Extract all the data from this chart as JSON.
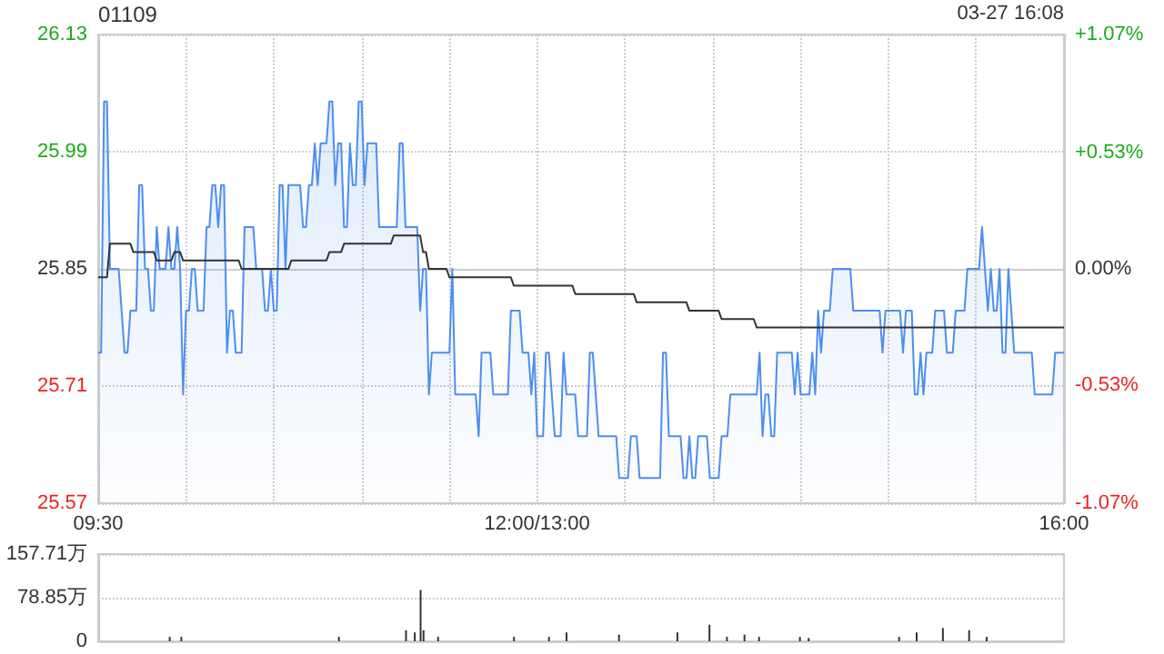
{
  "chart_data": [
    {
      "type": "line",
      "title": "01109",
      "annotations": [
        "03-27 16:08"
      ],
      "categories": [
        "09:30",
        null,
        null,
        null,
        null,
        null,
        null,
        null,
        null,
        null,
        null,
        null,
        null,
        null,
        null,
        null,
        null,
        null,
        null,
        null,
        null,
        null,
        null,
        null,
        null,
        null,
        null,
        null,
        null,
        null,
        null,
        null,
        null,
        null,
        null,
        null,
        null,
        null,
        null,
        null,
        null,
        null,
        null,
        null,
        null,
        null,
        null,
        null,
        null,
        null,
        null,
        null,
        null,
        null,
        null,
        null,
        null,
        null,
        null,
        null,
        null,
        null,
        null,
        null,
        null,
        null,
        null,
        null,
        null,
        null,
        null,
        null,
        null,
        null,
        null,
        null,
        null,
        null,
        null,
        null,
        null,
        null,
        null,
        null,
        null,
        null,
        null,
        null,
        null,
        null,
        null,
        null,
        null,
        null,
        null,
        null,
        null,
        null,
        null,
        null,
        null,
        null,
        null,
        null,
        null,
        null,
        null,
        null,
        null,
        null,
        null,
        null,
        null,
        null,
        null,
        null,
        null,
        null,
        null,
        null,
        null,
        null,
        null,
        null,
        null,
        null,
        null,
        null,
        null,
        null,
        null,
        null,
        null,
        null,
        null,
        null,
        null,
        null,
        null,
        null,
        null,
        null,
        null,
        null,
        null,
        null,
        null,
        null,
        null,
        null,
        "12:00/13:00",
        null,
        null,
        null,
        null,
        null,
        null,
        null,
        null,
        null,
        null,
        null,
        null,
        null,
        null,
        null,
        null,
        null,
        null,
        null,
        null,
        null,
        null,
        null,
        null,
        null,
        null,
        null,
        null,
        null,
        null,
        null,
        null,
        null,
        null,
        null,
        null,
        null,
        null,
        null,
        null,
        null,
        null,
        null,
        null,
        null,
        null,
        null,
        null,
        null,
        null,
        null,
        null,
        null,
        null,
        null,
        null,
        null,
        null,
        null,
        null,
        null,
        null,
        null,
        null,
        null,
        null,
        null,
        null,
        null,
        null,
        null,
        null,
        null,
        null,
        null,
        null,
        null,
        null,
        null,
        null,
        null,
        null,
        null,
        null,
        null,
        null,
        null,
        null,
        null,
        null,
        null,
        null,
        null,
        null,
        null,
        null,
        null,
        null,
        null,
        null,
        null,
        null,
        null,
        null,
        null,
        null,
        null,
        null,
        null,
        null,
        null,
        null,
        null,
        null,
        null,
        null,
        null,
        null,
        null,
        null,
        null,
        null,
        null,
        null,
        null,
        null,
        null,
        null,
        null,
        null,
        null,
        null,
        null,
        null,
        null,
        null,
        null,
        null,
        null,
        null,
        null,
        null,
        null,
        null,
        null,
        null,
        null,
        null,
        null,
        null,
        null,
        null,
        null,
        null,
        null,
        null,
        null,
        null,
        null,
        null,
        null,
        null,
        null,
        null,
        null,
        null,
        null,
        null,
        null,
        null,
        null,
        null,
        null,
        null,
        null,
        null,
        null,
        null,
        null,
        "16:00"
      ],
      "ylim": [
        25.57,
        26.13
      ],
      "yticks": [
        25.57,
        25.71,
        25.85,
        25.99,
        26.13
      ],
      "y2lim": [
        -1.07,
        1.07
      ],
      "y2ticks": [
        {
          "value": -1.07,
          "label": "-1.07%"
        },
        {
          "value": -0.53,
          "label": "-0.53%"
        },
        {
          "value": 0,
          "label": "0.00%"
        },
        {
          "value": 0.53,
          "label": "+0.53%"
        },
        {
          "value": 1.07,
          "label": "+1.07%"
        }
      ],
      "grid": true,
      "marker": "none",
      "line_style": "solid",
      "series": [
        {
          "type": "area",
          "color": "#4d8ef0",
          "values": [
            25.75,
            25.75,
            26.05,
            26.05,
            25.85,
            25.85,
            25.85,
            25.85,
            25.8,
            25.75,
            25.75,
            25.8,
            25.8,
            25.8,
            25.95,
            25.95,
            25.85,
            25.85,
            25.8,
            25.8,
            25.9,
            25.85,
            25.85,
            25.85,
            25.9,
            25.85,
            25.85,
            25.9,
            25.85,
            25.7,
            25.8,
            25.8,
            25.85,
            25.85,
            25.8,
            25.8,
            25.8,
            25.9,
            25.9,
            25.95,
            25.95,
            25.9,
            25.95,
            25.95,
            25.75,
            25.8,
            25.8,
            25.75,
            25.75,
            25.75,
            25.9,
            25.9,
            25.9,
            25.9,
            25.85,
            25.85,
            25.85,
            25.8,
            25.8,
            25.85,
            25.8,
            25.8,
            25.95,
            25.95,
            25.85,
            25.95,
            25.95,
            25.95,
            25.95,
            25.95,
            25.9,
            25.9,
            25.95,
            25.95,
            26,
            25.95,
            26,
            26,
            26,
            26.05,
            26.05,
            25.95,
            26,
            26,
            25.9,
            25.9,
            26,
            25.95,
            25.95,
            26.05,
            26.05,
            25.95,
            26,
            26,
            26,
            26,
            25.9,
            25.9,
            25.9,
            25.9,
            25.9,
            25.9,
            25.9,
            26,
            26,
            25.9,
            25.9,
            25.9,
            25.9,
            25.9,
            25.8,
            25.85,
            25.85,
            25.7,
            25.75,
            25.75,
            25.75,
            25.75,
            25.75,
            25.75,
            25.75,
            25.85,
            25.7,
            25.7,
            25.7,
            25.7,
            25.7,
            25.7,
            25.7,
            25.7,
            25.65,
            25.75,
            25.75,
            25.75,
            25.75,
            25.7,
            25.7,
            25.7,
            25.7,
            25.7,
            25.7,
            25.8,
            25.8,
            25.8,
            25.8,
            25.75,
            25.75,
            25.75,
            25.7,
            25.75,
            25.65,
            25.65,
            25.65,
            25.75,
            25.75,
            25.7,
            25.65,
            25.65,
            25.65,
            25.75,
            25.7,
            25.7,
            25.7,
            25.7,
            25.65,
            25.65,
            25.65,
            25.65,
            25.75,
            25.75,
            25.7,
            25.65,
            25.65,
            25.65,
            25.65,
            25.65,
            25.65,
            25.65,
            25.6,
            25.6,
            25.6,
            25.6,
            25.65,
            25.65,
            25.65,
            25.6,
            25.6,
            25.6,
            25.6,
            25.6,
            25.6,
            25.6,
            25.6,
            25.75,
            25.75,
            25.65,
            25.65,
            25.65,
            25.65,
            25.65,
            25.6,
            25.6,
            25.65,
            25.6,
            25.6,
            25.65,
            25.65,
            25.65,
            25.65,
            25.6,
            25.6,
            25.6,
            25.6,
            25.65,
            25.65,
            25.65,
            25.7,
            25.7,
            25.7,
            25.7,
            25.7,
            25.7,
            25.7,
            25.7,
            25.7,
            25.7,
            25.75,
            25.65,
            25.7,
            25.7,
            25.65,
            25.65,
            25.75,
            25.75,
            25.75,
            25.75,
            25.75,
            25.75,
            25.7,
            25.75,
            25.7,
            25.7,
            25.7,
            25.7,
            25.75,
            25.7,
            25.8,
            25.75,
            25.8,
            25.8,
            25.8,
            25.85,
            25.85,
            25.85,
            25.85,
            25.85,
            25.85,
            25.85,
            25.8,
            25.8,
            25.8,
            25.8,
            25.8,
            25.8,
            25.8,
            25.8,
            25.8,
            25.8,
            25.75,
            25.8,
            25.8,
            25.8,
            25.8,
            25.8,
            25.8,
            25.75,
            25.8,
            25.8,
            25.8,
            25.7,
            25.7,
            25.75,
            25.7,
            25.75,
            25.75,
            25.75,
            25.8,
            25.8,
            25.8,
            25.8,
            25.75,
            25.75,
            25.75,
            25.8,
            25.8,
            25.8,
            25.8,
            25.85,
            25.85,
            25.85,
            25.85,
            25.85,
            25.9,
            25.85,
            25.8,
            25.85,
            25.8,
            25.8,
            25.85,
            25.75,
            25.75,
            25.85,
            25.8,
            25.75,
            25.75,
            25.75,
            25.75,
            25.75,
            25.75,
            25.75,
            25.7,
            25.7,
            25.7,
            25.7,
            25.7,
            25.7,
            25.7,
            25.75,
            25.75,
            25.75,
            25.75
          ]
        },
        {
          "type": "line",
          "color": "#333333",
          "values": [
            25.84,
            25.84,
            25.84,
            25.84,
            25.88,
            25.88,
            25.88,
            25.88,
            25.88,
            25.88,
            25.88,
            25.88,
            25.87,
            25.87,
            25.87,
            25.87,
            25.87,
            25.87,
            25.87,
            25.87,
            25.86,
            25.86,
            25.86,
            25.86,
            25.86,
            25.86,
            25.87,
            25.87,
            25.87,
            25.86,
            25.86,
            25.86,
            25.86,
            25.86,
            25.86,
            25.86,
            25.86,
            25.86,
            25.86,
            25.86,
            25.86,
            25.86,
            25.86,
            25.86,
            25.86,
            25.86,
            25.86,
            25.86,
            25.86,
            25.85,
            25.85,
            25.85,
            25.85,
            25.85,
            25.85,
            25.85,
            25.85,
            25.85,
            25.85,
            25.85,
            25.85,
            25.85,
            25.85,
            25.85,
            25.85,
            25.85,
            25.86,
            25.86,
            25.86,
            25.86,
            25.86,
            25.86,
            25.86,
            25.86,
            25.86,
            25.86,
            25.86,
            25.86,
            25.86,
            25.87,
            25.87,
            25.87,
            25.87,
            25.87,
            25.88,
            25.88,
            25.88,
            25.88,
            25.88,
            25.88,
            25.88,
            25.88,
            25.88,
            25.88,
            25.88,
            25.88,
            25.88,
            25.88,
            25.88,
            25.88,
            25.88,
            25.89,
            25.89,
            25.89,
            25.89,
            25.89,
            25.89,
            25.89,
            25.89,
            25.89,
            25.89,
            25.87,
            25.87,
            25.85,
            25.85,
            25.85,
            25.85,
            25.85,
            25.85,
            25.85,
            25.84,
            25.84,
            25.84,
            25.84,
            25.84,
            25.84,
            25.84,
            25.84,
            25.84,
            25.84,
            25.84,
            25.84,
            25.84,
            25.84,
            25.84,
            25.84,
            25.84,
            25.84,
            25.84,
            25.84,
            25.84,
            25.84,
            25.83,
            25.83,
            25.83,
            25.83,
            25.83,
            25.83,
            25.83,
            25.83,
            25.83,
            25.83,
            25.83,
            25.83,
            25.83,
            25.83,
            25.83,
            25.83,
            25.83,
            25.83,
            25.83,
            25.83,
            25.83,
            25.82,
            25.82,
            25.82,
            25.82,
            25.82,
            25.82,
            25.82,
            25.82,
            25.82,
            25.82,
            25.82,
            25.82,
            25.82,
            25.82,
            25.82,
            25.82,
            25.82,
            25.82,
            25.82,
            25.82,
            25.82,
            25.81,
            25.81,
            25.81,
            25.81,
            25.81,
            25.81,
            25.81,
            25.81,
            25.81,
            25.81,
            25.81,
            25.81,
            25.81,
            25.81,
            25.81,
            25.81,
            25.81,
            25.81,
            25.8,
            25.8,
            25.8,
            25.8,
            25.8,
            25.8,
            25.8,
            25.8,
            25.8,
            25.8,
            25.8,
            25.79,
            25.79,
            25.79,
            25.79,
            25.79,
            25.79,
            25.79,
            25.79,
            25.79,
            25.79,
            25.79,
            25.79,
            25.78,
            25.78,
            25.78,
            25.78,
            25.78,
            25.78,
            25.78,
            25.78,
            25.78,
            25.78,
            25.78,
            25.78,
            25.78,
            25.78,
            25.78,
            25.78,
            25.78,
            25.78,
            25.78,
            25.78,
            25.78,
            25.78,
            25.78,
            25.78,
            25.78,
            25.78,
            25.78,
            25.78,
            25.78,
            25.78,
            25.78,
            25.78,
            25.78,
            25.78,
            25.78,
            25.78,
            25.78,
            25.78,
            25.78,
            25.78,
            25.78,
            25.78,
            25.78,
            25.78,
            25.78,
            25.78,
            25.78,
            25.78,
            25.78,
            25.78,
            25.78,
            25.78,
            25.78,
            25.78,
            25.78,
            25.78,
            25.78,
            25.78,
            25.78,
            25.78,
            25.78,
            25.78,
            25.78,
            25.78,
            25.78,
            25.78,
            25.78,
            25.78,
            25.78,
            25.78,
            25.78,
            25.78,
            25.78,
            25.78,
            25.78,
            25.78,
            25.78,
            25.78,
            25.78,
            25.78,
            25.78,
            25.78,
            25.78,
            25.78,
            25.78,
            25.78,
            25.78,
            25.78,
            25.78,
            25.78,
            25.78,
            25.78,
            25.78,
            25.78,
            25.78,
            25.78,
            25.78,
            25.78,
            25.78,
            25.78,
            25.78,
            25.78,
            25.78,
            25.78,
            25.78,
            25.78
          ]
        }
      ]
    },
    {
      "type": "bar",
      "tick_labels": "y",
      "grid": "y",
      "categories": [
        null,
        null,
        null,
        null,
        null,
        null,
        null,
        null,
        null,
        null,
        null,
        null,
        null,
        null,
        null,
        null,
        null,
        null,
        null,
        null,
        null,
        null,
        null,
        null,
        null,
        null,
        null,
        null,
        null,
        null,
        null,
        null,
        null,
        null,
        null,
        null,
        null,
        null,
        null,
        null,
        null,
        null,
        null,
        null,
        null,
        null,
        null,
        null,
        null,
        null,
        null,
        null,
        null,
        null,
        null,
        null,
        null,
        null,
        null,
        null,
        null,
        null,
        null,
        null,
        null,
        null,
        null,
        null,
        null,
        null,
        null,
        null,
        null,
        null,
        null,
        null,
        null,
        null,
        null,
        null,
        null,
        null,
        null,
        null,
        null,
        null,
        null,
        null,
        null,
        null,
        null,
        null,
        null,
        null,
        null,
        null,
        null,
        null,
        null,
        null,
        null,
        null,
        null,
        null,
        null,
        null,
        null,
        null,
        null,
        null,
        null,
        null,
        null,
        null,
        null,
        null,
        null,
        null,
        null,
        null,
        null,
        null,
        null,
        null,
        null,
        null,
        null,
        null,
        null,
        null,
        null,
        null,
        null,
        null,
        null,
        null,
        null,
        null,
        null,
        null,
        null,
        null,
        null,
        null,
        null,
        null,
        null,
        null,
        null,
        null,
        null,
        null,
        null,
        null,
        null,
        null,
        null,
        null,
        null,
        null,
        null,
        null,
        null,
        null,
        null,
        null,
        null,
        null,
        null,
        null,
        null,
        null,
        null,
        null,
        null,
        null,
        null,
        null,
        null,
        null,
        null,
        null,
        null,
        null,
        null,
        null,
        null,
        null,
        null,
        null,
        null,
        null,
        null,
        null,
        null,
        null,
        null,
        null,
        null,
        null,
        null,
        null,
        null,
        null,
        null,
        null,
        null,
        null,
        null,
        null,
        null,
        null,
        null,
        null,
        null,
        null,
        null,
        null,
        null,
        null,
        null,
        null,
        null,
        null,
        null,
        null,
        null,
        null,
        null,
        null,
        null,
        null,
        null,
        null,
        null,
        null,
        null,
        null,
        null,
        null,
        null,
        null,
        null,
        null,
        null,
        null,
        null,
        null,
        null,
        null,
        null,
        null,
        null,
        null,
        null,
        null,
        null,
        null,
        null,
        null,
        null,
        null,
        null,
        null,
        null,
        null,
        null,
        null,
        null,
        null,
        null,
        null,
        null,
        null,
        null,
        null,
        null,
        null,
        null,
        null,
        null,
        null,
        null,
        null,
        null,
        null,
        null,
        null,
        null,
        null,
        null,
        null,
        null,
        null,
        null,
        null,
        null,
        null,
        null,
        null,
        null,
        null,
        null,
        null,
        null,
        null,
        null,
        null,
        null,
        null,
        null,
        null,
        null,
        null,
        null,
        null,
        null,
        null,
        null,
        null,
        null,
        null,
        null,
        null,
        null,
        null,
        null,
        null,
        null,
        null,
        null
      ],
      "ylim": [
        0,
        157.71
      ],
      "yticks": [
        0,
        {
          "value": 78.85,
          "label": "78.85万"
        },
        {
          "value": 157.71,
          "label": "157.71万"
        }
      ],
      "values": [
        null,
        null,
        null,
        null,
        null,
        null,
        null,
        null,
        null,
        null,
        null,
        null,
        null,
        null,
        null,
        null,
        null,
        null,
        null,
        null,
        null,
        null,
        null,
        null,
        8,
        null,
        null,
        null,
        8,
        null,
        null,
        null,
        null,
        null,
        null,
        null,
        null,
        null,
        null,
        null,
        null,
        null,
        null,
        null,
        null,
        null,
        null,
        null,
        null,
        null,
        null,
        null,
        null,
        null,
        null,
        null,
        null,
        null,
        null,
        null,
        null,
        null,
        null,
        null,
        null,
        null,
        null,
        null,
        null,
        null,
        null,
        null,
        null,
        null,
        null,
        null,
        null,
        null,
        null,
        null,
        null,
        null,
        8,
        null,
        null,
        null,
        null,
        null,
        null,
        null,
        null,
        null,
        null,
        null,
        null,
        null,
        null,
        null,
        null,
        null,
        null,
        null,
        null,
        null,
        null,
        20,
        null,
        null,
        16,
        null,
        93,
        20,
        null,
        null,
        null,
        null,
        8,
        null,
        null,
        null,
        null,
        null,
        null,
        null,
        null,
        null,
        null,
        null,
        null,
        null,
        null,
        null,
        null,
        null,
        null,
        null,
        null,
        null,
        null,
        null,
        null,
        null,
        8,
        null,
        null,
        null,
        null,
        null,
        null,
        null,
        null,
        null,
        null,
        null,
        8,
        null,
        null,
        null,
        null,
        null,
        16,
        null,
        null,
        null,
        null,
        null,
        null,
        null,
        null,
        null,
        null,
        null,
        null,
        null,
        null,
        null,
        null,
        null,
        12,
        null,
        null,
        null,
        null,
        null,
        null,
        null,
        null,
        null,
        null,
        null,
        null,
        null,
        null,
        null,
        null,
        null,
        null,
        null,
        16,
        null,
        null,
        null,
        null,
        null,
        null,
        null,
        null,
        null,
        null,
        30,
        null,
        null,
        null,
        null,
        null,
        8,
        null,
        null,
        null,
        null,
        null,
        12,
        null,
        null,
        null,
        null,
        8,
        null,
        null,
        null,
        null,
        null,
        null,
        null,
        null,
        null,
        null,
        null,
        null,
        null,
        8,
        null,
        null,
        6,
        null,
        null,
        null,
        null,
        null,
        null,
        null,
        null,
        null,
        null,
        null,
        null,
        null,
        null,
        null,
        null,
        null,
        null,
        null,
        null,
        null,
        null,
        null,
        null,
        null,
        null,
        null,
        null,
        null,
        null,
        8,
        null,
        null,
        null,
        null,
        null,
        16,
        null,
        null,
        null,
        null,
        null,
        null,
        null,
        null,
        24,
        null,
        null,
        null,
        null,
        null,
        null,
        null,
        null,
        20,
        null,
        null,
        null,
        null,
        null,
        8,
        null,
        null,
        null,
        null,
        null,
        null,
        null,
        null,
        null,
        null,
        null,
        null,
        null,
        null,
        null,
        null,
        null,
        null,
        null,
        null,
        null,
        null,
        null,
        null,
        null,
        null
      ],
      "color": "#333333"
    }
  ]
}
